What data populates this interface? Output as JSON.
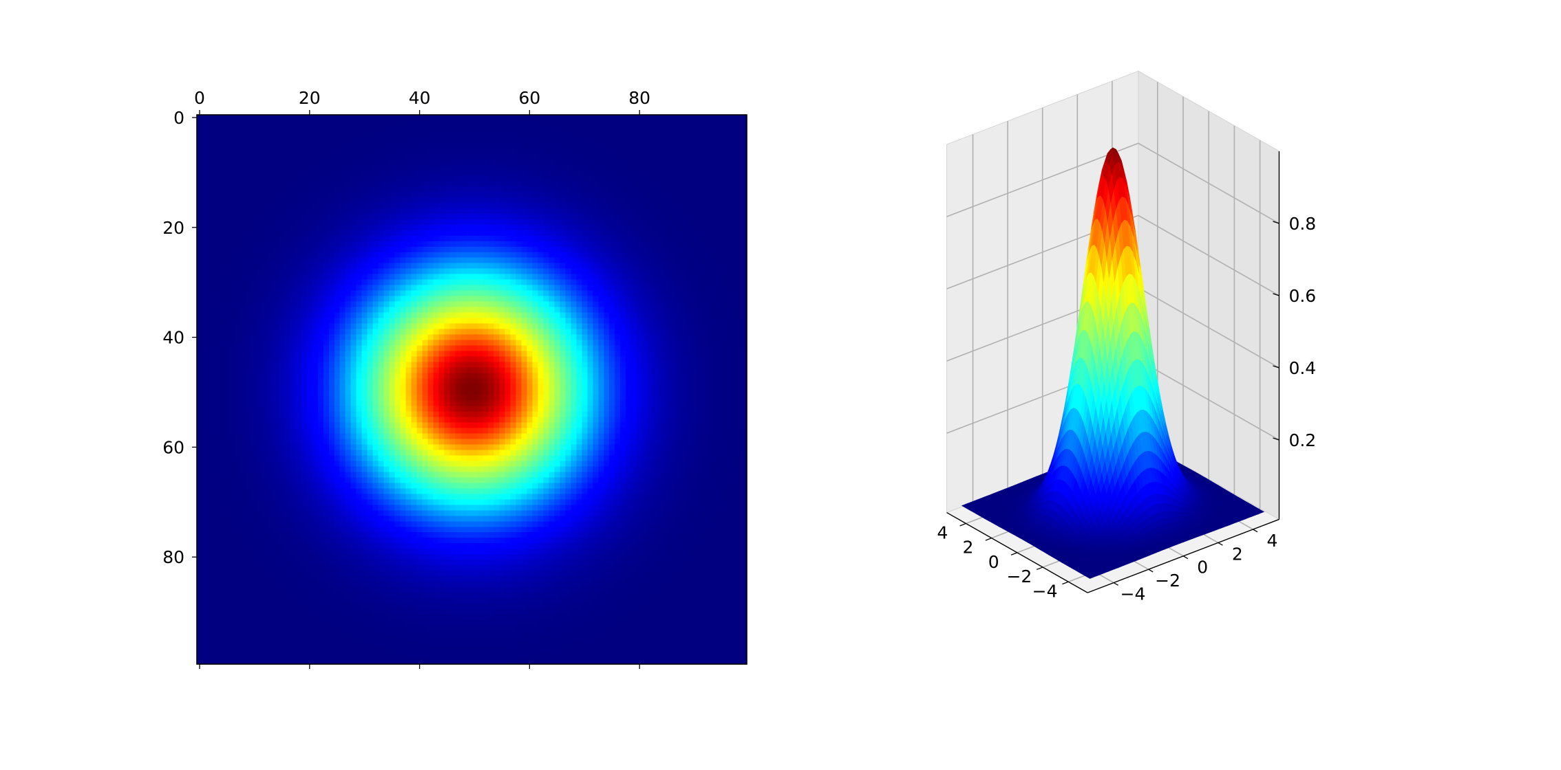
{
  "chart_data": [
    {
      "type": "heatmap",
      "colormap": "jet",
      "grid_size": [
        100,
        100
      ],
      "function": "exp(-(x^2+y^2)/4) on [-5,5]x[-5,5]",
      "xlim": [
        0,
        99
      ],
      "ylim": [
        99,
        0
      ],
      "x_axis_position": "top",
      "x_ticks": [
        0,
        20,
        40,
        60,
        80
      ],
      "x_tick_labels": [
        "0",
        "20",
        "40",
        "60",
        "80"
      ],
      "y_ticks": [
        0,
        20,
        40,
        60,
        80
      ],
      "y_tick_labels": [
        "0",
        "20",
        "40",
        "60",
        "80"
      ],
      "peak": {
        "row": 50,
        "col": 50,
        "value": 1.0
      },
      "value_range": [
        0,
        1
      ],
      "grid": false
    },
    {
      "type": "surface",
      "colormap": "jet",
      "function": "exp(-(x^2+y^2)/4)",
      "x_range": [
        -5,
        5
      ],
      "y_range": [
        -5,
        5
      ],
      "z_range": [
        0,
        1
      ],
      "x_ticks": [
        -4,
        -2,
        0,
        2,
        4
      ],
      "x_tick_labels": [
        "−4",
        "−2",
        "0",
        "2",
        "4"
      ],
      "y_ticks": [
        -4,
        -2,
        0,
        2,
        4
      ],
      "y_tick_labels": [
        "−4",
        "−2",
        "0",
        "2",
        "4"
      ],
      "z_ticks": [
        0.2,
        0.4,
        0.6,
        0.8
      ],
      "z_tick_labels": [
        "0.2",
        "0.4",
        "0.6",
        "0.8"
      ],
      "view": {
        "elev": 30,
        "azim": -60
      },
      "grid": true
    }
  ]
}
